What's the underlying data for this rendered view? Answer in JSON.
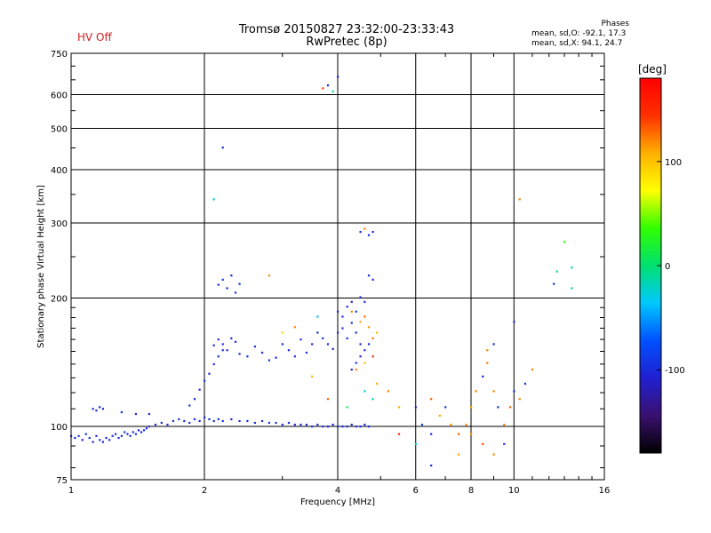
{
  "hv_status": "HV Off",
  "title": {
    "line1": "Tromsø 20150827 23:32:00-23:33:43",
    "line2": "RwPretec (8p)"
  },
  "stats": {
    "title": "Phases",
    "rows": [
      "mean, sd,O: -92.1, 17.3",
      "mean, sd,X:  94.1, 24.7"
    ]
  },
  "colorbar": {
    "title": "[deg]",
    "ticks": [
      "100",
      "0",
      "-100"
    ],
    "tick_values": [
      100,
      0,
      -100
    ],
    "range": [
      -180,
      180
    ],
    "colors": [
      "#000000",
      "#3a1070",
      "#2020d0",
      "#0050ff",
      "#00c8ff",
      "#00e070",
      "#30ff00",
      "#ffff00",
      "#ffb000",
      "#ff3000",
      "#ff0000"
    ]
  },
  "chart_data": {
    "type": "scatter",
    "xlabel": "Frequency [MHz]",
    "ylabel": "Stationary phase Virtual Height [km]",
    "xscale": "log",
    "yscale": "log",
    "xlim": [
      1,
      16
    ],
    "ylim": [
      75,
      750
    ],
    "xticks": [
      "1",
      "2",
      "4",
      "6",
      "8",
      "10",
      "16"
    ],
    "xtick_values": [
      1,
      2,
      4,
      6,
      8,
      10,
      16
    ],
    "yticks": [
      "75",
      "100",
      "200",
      "300",
      "400",
      "500",
      "600",
      "750"
    ],
    "ytick_values": [
      75,
      100,
      200,
      300,
      400,
      500,
      600,
      750
    ],
    "grid": true,
    "points": [
      [
        1.0,
        95,
        -100
      ],
      [
        1.02,
        94,
        -105
      ],
      [
        1.04,
        95,
        -95
      ],
      [
        1.06,
        93,
        -110
      ],
      [
        1.08,
        96,
        -100
      ],
      [
        1.1,
        94,
        -98
      ],
      [
        1.12,
        92,
        -104
      ],
      [
        1.14,
        95,
        -101
      ],
      [
        1.16,
        93,
        -96
      ],
      [
        1.18,
        92,
        -108
      ],
      [
        1.2,
        94,
        -100
      ],
      [
        1.22,
        93,
        -97
      ],
      [
        1.24,
        95,
        -105
      ],
      [
        1.26,
        96,
        -99
      ],
      [
        1.28,
        94,
        -102
      ],
      [
        1.3,
        95,
        -100
      ],
      [
        1.32,
        97,
        -94
      ],
      [
        1.34,
        96,
        -106
      ],
      [
        1.36,
        95,
        -100
      ],
      [
        1.38,
        97,
        -103
      ],
      [
        1.4,
        96,
        -95
      ],
      [
        1.42,
        98,
        -100
      ],
      [
        1.44,
        97,
        -104
      ],
      [
        1.46,
        98,
        -99
      ],
      [
        1.48,
        99,
        -101
      ],
      [
        1.5,
        100,
        -97
      ],
      [
        1.55,
        101,
        -100
      ],
      [
        1.6,
        102,
        -103
      ],
      [
        1.65,
        101,
        -98
      ],
      [
        1.7,
        103,
        -100
      ],
      [
        1.75,
        104,
        -95
      ],
      [
        1.8,
        103,
        -105
      ],
      [
        1.85,
        102,
        -100
      ],
      [
        1.9,
        104,
        -97
      ],
      [
        1.95,
        103,
        -103
      ],
      [
        2.0,
        105,
        -100
      ],
      [
        2.05,
        104,
        -96
      ],
      [
        2.1,
        103,
        -104
      ],
      [
        2.15,
        104,
        -100
      ],
      [
        2.2,
        103,
        -98
      ],
      [
        2.3,
        104,
        -102
      ],
      [
        2.4,
        103,
        -100
      ],
      [
        2.5,
        103,
        -97
      ],
      [
        2.6,
        102,
        -103
      ],
      [
        2.7,
        103,
        -100
      ],
      [
        2.8,
        102,
        -95
      ],
      [
        2.9,
        102,
        -101
      ],
      [
        3.0,
        101,
        -104
      ],
      [
        3.1,
        102,
        -99
      ],
      [
        3.2,
        101,
        -100
      ],
      [
        3.3,
        101,
        -103
      ],
      [
        3.4,
        101,
        -98
      ],
      [
        3.5,
        100,
        -100
      ],
      [
        3.6,
        101,
        -102
      ],
      [
        3.7,
        100,
        -97
      ],
      [
        3.8,
        100,
        -100
      ],
      [
        3.9,
        101,
        -104
      ],
      [
        4.0,
        100,
        -99
      ],
      [
        4.1,
        100,
        -100
      ],
      [
        4.2,
        100,
        -96
      ],
      [
        4.3,
        101,
        -101
      ],
      [
        4.4,
        100,
        -100
      ],
      [
        4.5,
        100,
        -103
      ],
      [
        4.6,
        101,
        -98
      ],
      [
        4.7,
        100,
        -100
      ],
      [
        1.12,
        110,
        -100
      ],
      [
        1.14,
        109,
        -98
      ],
      [
        1.16,
        111,
        -103
      ],
      [
        1.18,
        110,
        -100
      ],
      [
        1.3,
        108,
        -97
      ],
      [
        1.4,
        107,
        -102
      ],
      [
        1.5,
        107,
        -100
      ],
      [
        1.85,
        112,
        -99
      ],
      [
        1.9,
        116,
        -101
      ],
      [
        1.95,
        122,
        -100
      ],
      [
        2.0,
        128,
        -97
      ],
      [
        2.05,
        133,
        -103
      ],
      [
        2.1,
        140,
        -100
      ],
      [
        2.15,
        146,
        -96
      ],
      [
        2.2,
        151,
        -101
      ],
      [
        2.1,
        155,
        -100
      ],
      [
        2.15,
        160,
        -103
      ],
      [
        2.2,
        156,
        -98
      ],
      [
        2.25,
        151,
        -100
      ],
      [
        2.3,
        161,
        -104
      ],
      [
        2.35,
        158,
        -99
      ],
      [
        2.4,
        148,
        -100
      ],
      [
        2.5,
        146,
        -96
      ],
      [
        2.6,
        154,
        -102
      ],
      [
        2.7,
        149,
        -100
      ],
      [
        2.8,
        143,
        -98
      ],
      [
        2.9,
        145,
        -101
      ],
      [
        3.0,
        156,
        -100
      ],
      [
        3.1,
        151,
        -97
      ],
      [
        3.2,
        146,
        -103
      ],
      [
        3.3,
        160,
        -100
      ],
      [
        3.4,
        149,
        -99
      ],
      [
        3.5,
        156,
        -101
      ],
      [
        3.6,
        166,
        -100
      ],
      [
        3.7,
        161,
        -96
      ],
      [
        3.8,
        156,
        -100
      ],
      [
        3.9,
        152,
        -104
      ],
      [
        4.0,
        166,
        -99
      ],
      [
        4.1,
        170,
        -100
      ],
      [
        4.2,
        161,
        -103
      ],
      [
        4.3,
        175,
        -98
      ],
      [
        4.4,
        166,
        -100
      ],
      [
        4.5,
        156,
        -101
      ],
      [
        2.15,
        215,
        -100
      ],
      [
        2.2,
        221,
        -97
      ],
      [
        2.25,
        211,
        -103
      ],
      [
        2.3,
        226,
        -100
      ],
      [
        2.35,
        206,
        -99
      ],
      [
        2.4,
        216,
        -101
      ],
      [
        4.0,
        186,
        -100
      ],
      [
        4.1,
        181,
        -97
      ],
      [
        4.2,
        191,
        -103
      ],
      [
        4.3,
        196,
        -100
      ],
      [
        4.4,
        186,
        -96
      ],
      [
        4.5,
        201,
        -101
      ],
      [
        4.6,
        196,
        -100
      ],
      [
        4.7,
        226,
        -98
      ],
      [
        4.8,
        221,
        -102
      ],
      [
        4.3,
        136,
        -100
      ],
      [
        4.4,
        141,
        -97
      ],
      [
        4.5,
        146,
        -103
      ],
      [
        4.6,
        151,
        -100
      ],
      [
        4.7,
        156,
        -99
      ],
      [
        4.8,
        146,
        -101
      ],
      [
        4.3,
        186,
        120
      ],
      [
        4.5,
        176,
        110
      ],
      [
        4.6,
        181,
        130
      ],
      [
        4.7,
        171,
        115
      ],
      [
        4.8,
        161,
        125
      ],
      [
        4.9,
        166,
        105
      ],
      [
        4.4,
        136,
        120
      ],
      [
        4.6,
        141,
        100
      ],
      [
        4.8,
        146,
        135
      ],
      [
        4.9,
        126,
        110
      ],
      [
        4.6,
        121,
        -30
      ],
      [
        4.8,
        116,
        -20
      ],
      [
        4.2,
        111,
        10
      ],
      [
        3.8,
        116,
        130
      ],
      [
        3.5,
        131,
        105
      ],
      [
        3.2,
        171,
        120
      ],
      [
        3.0,
        166,
        90
      ],
      [
        3.6,
        181,
        -40
      ],
      [
        4.5,
        286,
        -100
      ],
      [
        4.6,
        291,
        120
      ],
      [
        4.7,
        281,
        -95
      ],
      [
        4.8,
        286,
        -100
      ],
      [
        3.7,
        621,
        140
      ],
      [
        3.8,
        631,
        -100
      ],
      [
        3.9,
        611,
        -10
      ],
      [
        4.0,
        661,
        -105
      ],
      [
        2.2,
        451,
        -100
      ],
      [
        2.1,
        341,
        -20
      ],
      [
        2.8,
        226,
        120
      ],
      [
        5.2,
        121,
        120
      ],
      [
        5.5,
        111,
        110
      ],
      [
        6.0,
        111,
        -100
      ],
      [
        6.2,
        101,
        -80
      ],
      [
        6.5,
        96,
        -100
      ],
      [
        6.8,
        106,
        110
      ],
      [
        7.0,
        111,
        -100
      ],
      [
        7.2,
        101,
        120
      ],
      [
        7.5,
        96,
        130
      ],
      [
        7.8,
        101,
        120
      ],
      [
        8.0,
        111,
        110
      ],
      [
        8.2,
        121,
        120
      ],
      [
        8.5,
        131,
        -100
      ],
      [
        8.7,
        141,
        125
      ],
      [
        9.0,
        121,
        120
      ],
      [
        9.2,
        111,
        -100
      ],
      [
        9.5,
        101,
        120
      ],
      [
        9.8,
        111,
        130
      ],
      [
        10.0,
        121,
        -100
      ],
      [
        10.3,
        116,
        120
      ],
      [
        10.6,
        126,
        -100
      ],
      [
        11.0,
        136,
        120
      ],
      [
        8.0,
        96,
        115
      ],
      [
        8.5,
        91,
        140
      ],
      [
        9.0,
        86,
        120
      ],
      [
        9.5,
        91,
        -100
      ],
      [
        7.5,
        86,
        110
      ],
      [
        6.0,
        91,
        -20
      ],
      [
        5.5,
        96,
        150
      ],
      [
        6.5,
        81,
        -100
      ],
      [
        12.5,
        231,
        -10
      ],
      [
        13.5,
        236,
        -5
      ],
      [
        13.0,
        271,
        30
      ],
      [
        13.5,
        211,
        -10
      ],
      [
        12.3,
        216,
        -100
      ],
      [
        10.3,
        341,
        120
      ],
      [
        10.0,
        176,
        -100
      ],
      [
        9.0,
        156,
        -100
      ],
      [
        8.7,
        151,
        120
      ],
      [
        6.5,
        116,
        130
      ]
    ]
  }
}
